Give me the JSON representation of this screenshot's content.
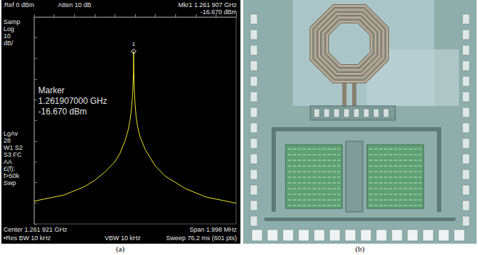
{
  "chart_data": {
    "type": "line",
    "color": "#f0e62a",
    "grid": false,
    "tick_labels": false,
    "xlim": [
      1.260922,
      1.26292
    ],
    "xticks": [
      1.260922,
      1.2611218,
      1.2613216,
      1.2615214,
      1.2617212,
      1.261921,
      1.2621208,
      1.2623206,
      1.2625204,
      1.2627202,
      1.26292
    ],
    "ylim": [
      -100,
      0
    ],
    "yticks": [
      0,
      -10,
      -20,
      -30,
      -40,
      -50,
      -60,
      -70,
      -80,
      -90,
      -100
    ],
    "x": [
      1.260922,
      1.261021,
      1.261121,
      1.261221,
      1.261321,
      1.261421,
      1.261521,
      1.261621,
      1.261721,
      1.261771,
      1.261821,
      1.261851,
      1.261871,
      1.261886,
      1.261896,
      1.261901,
      1.261905,
      1.261907,
      1.261909,
      1.261913,
      1.261921,
      1.261931,
      1.261946,
      1.261971,
      1.262021,
      1.262071,
      1.262121,
      1.262221,
      1.262321,
      1.262421,
      1.262521,
      1.262621,
      1.262721,
      1.262821,
      1.26292
    ],
    "values": [
      -89,
      -88,
      -87,
      -86,
      -84,
      -82,
      -79,
      -75,
      -70,
      -66,
      -60,
      -55,
      -50,
      -44,
      -38,
      -33,
      -26,
      -16.67,
      -26,
      -34,
      -42,
      -48,
      -53,
      -58,
      -64,
      -68,
      -72,
      -77,
      -80,
      -83,
      -85,
      -87,
      -88,
      -89,
      -90
    ],
    "peak": {
      "x": 1.261907,
      "y": -16.67,
      "label": "1"
    },
    "annotations": {
      "header": [
        "Ref 0 dBm",
        "Atten 10 dB"
      ],
      "marker_header": [
        "Mkr1 1.261 907 GHz",
        "-16.670 dBm"
      ],
      "side_top": [
        "Samp",
        "Log",
        "10",
        "dB/"
      ],
      "side_bottom": [
        "LgAv",
        "28",
        "W1 S2",
        "S3 FC",
        "AA",
        "£(f):",
        "f>50k",
        "Swp"
      ],
      "marker_readout": [
        "Marker",
        "1.261907000 GHz",
        "-16.670 dBm"
      ],
      "footer_left": [
        "Center 1.261 921 GHz",
        "•Res BW 10 kHz"
      ],
      "footer_middle": [
        "VBW 10 kHz"
      ],
      "footer_right": [
        "Span 1.998 MHz",
        "Sweep 76.2 ms (601 pts)"
      ]
    }
  },
  "captions": [
    "(a)",
    "(b)"
  ]
}
